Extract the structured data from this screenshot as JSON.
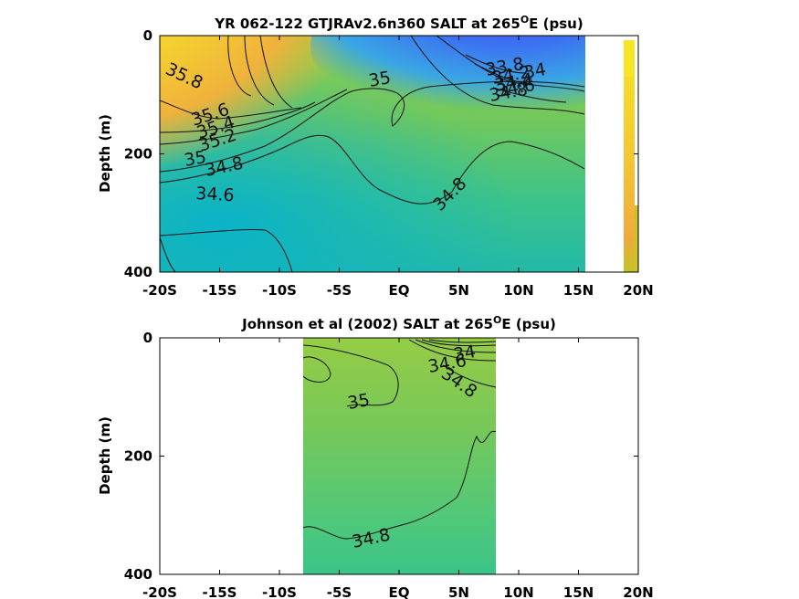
{
  "chart_data": [
    {
      "type": "contour",
      "title": "YR 062-122 GTJRAv2.6n360 SALT at 265",
      "title_superscript": "O",
      "title_suffix": "E (psu)",
      "ylabel": "Depth (m)",
      "xlabel": "",
      "xlim": [
        -20,
        20
      ],
      "ylim": [
        400,
        0
      ],
      "y_reversed": true,
      "xticks": [
        -20,
        -15,
        -10,
        -5,
        0,
        5,
        10,
        15,
        20
      ],
      "xtick_labels": [
        "-20S",
        "-15S",
        "-10S",
        "-5S",
        "EQ",
        "5N",
        "10N",
        "15N",
        "20N"
      ],
      "yticks": [
        0,
        200,
        400
      ],
      "ytick_labels": [
        "0",
        "200",
        "400"
      ],
      "data_extent_x": [
        -20,
        15.5
      ],
      "contour_labels": [
        {
          "text": "35.8",
          "x": -18,
          "y": 75
        },
        {
          "text": "35.6",
          "x": -16,
          "y": 133
        },
        {
          "text": "35.4",
          "x": -15.5,
          "y": 148
        },
        {
          "text": "35.2",
          "x": -15.5,
          "y": 175
        },
        {
          "text": "35",
          "x": -18,
          "y": 201
        },
        {
          "text": "34.8",
          "x": -14,
          "y": 213
        },
        {
          "text": "34.6",
          "x": -16,
          "y": 268
        },
        {
          "text": "35",
          "x": -0.5,
          "y": 72
        },
        {
          "text": "34.8",
          "x": 4.5,
          "y": 268
        },
        {
          "text": "33.8",
          "x": 9,
          "y": 52
        },
        {
          "text": "34",
          "x": 11.5,
          "y": 59
        },
        {
          "text": "34.2",
          "x": 9.5,
          "y": 72
        },
        {
          "text": "34.4",
          "x": 9.5,
          "y": 82
        },
        {
          "text": "34.6",
          "x": 9.5,
          "y": 91
        },
        {
          "text": "34.8",
          "x": 9,
          "y": 104
        }
      ]
    },
    {
      "type": "contour",
      "title": "Johnson et al (2002) SALT at 265",
      "title_superscript": "O",
      "title_suffix": "E (psu)",
      "ylabel": "Depth (m)",
      "xlabel": "",
      "xlim": [
        -20,
        20
      ],
      "ylim": [
        400,
        0
      ],
      "y_reversed": true,
      "xticks": [
        -20,
        -15,
        -10,
        -5,
        0,
        5,
        10,
        15,
        20
      ],
      "xtick_labels": [
        "-20S",
        "-15S",
        "-10S",
        "-5S",
        "EQ",
        "5N",
        "10N",
        "15N",
        "20N"
      ],
      "yticks": [
        0,
        200,
        400
      ],
      "ytick_labels": [
        "0",
        "200",
        "400"
      ],
      "data_extent_x": [
        -8,
        8
      ],
      "contour_labels": [
        {
          "text": "35",
          "x": -3,
          "y": 112
        },
        {
          "text": "34",
          "x": 6.5,
          "y": 33
        },
        {
          "text": "34.6",
          "x": 4.5,
          "y": 52
        },
        {
          "text": "34.8",
          "x": 5,
          "y": 85
        },
        {
          "text": "34.8",
          "x": -2,
          "y": 335
        }
      ]
    }
  ]
}
